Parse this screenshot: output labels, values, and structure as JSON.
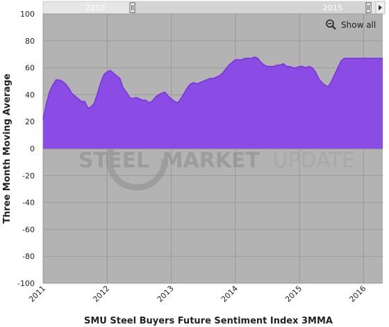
{
  "toolbar": {
    "show_all_label": "Show all",
    "icon": "zoom-out-magnifier-icon"
  },
  "navigator": {
    "labels": [
      "2010",
      "2015"
    ]
  },
  "watermark": {
    "word1": "STEEL",
    "word2": "MARKET",
    "word3": "UPDATE",
    "color": "#9a9a9a"
  },
  "colors": {
    "plot_background": "#b3b3b3",
    "series_fill": "#8b4ce6",
    "series_line": "#7a2fe0",
    "navigator_background": "#e6e6e6"
  },
  "chart_data": {
    "type": "area",
    "xlabel": "SMU Steel Buyers Future Sentiment Index 3MMA",
    "ylabel": "Three Month Moving Average",
    "ylim": [
      -100,
      100
    ],
    "yticks": [
      -100,
      -80,
      -60,
      -40,
      -20,
      0,
      20,
      40,
      60,
      80,
      100
    ],
    "xlim": [
      2011.0,
      2016.3
    ],
    "xticks": [
      2011,
      2012,
      2013,
      2014,
      2015,
      2016
    ],
    "xtick_labels": [
      "2011",
      "2012",
      "2013",
      "2014",
      "2015",
      "2016"
    ],
    "grid": true,
    "series": [
      {
        "x": [
          2011.0,
          2011.05,
          2011.1,
          2011.15,
          2011.2,
          2011.25,
          2011.3,
          2011.35,
          2011.4,
          2011.45,
          2011.5,
          2011.55,
          2011.6,
          2011.65,
          2011.7,
          2011.75,
          2011.8,
          2011.85,
          2011.9,
          2011.95,
          2012.0,
          2012.05,
          2012.1,
          2012.15,
          2012.2,
          2012.25,
          2012.3,
          2012.35,
          2012.4,
          2012.45,
          2012.5,
          2012.55,
          2012.6,
          2012.65,
          2012.7,
          2012.75,
          2012.8,
          2012.85,
          2012.9,
          2012.95,
          2013.0,
          2013.05,
          2013.1,
          2013.15,
          2013.2,
          2013.25,
          2013.3,
          2013.35,
          2013.4,
          2013.45,
          2013.5,
          2013.55,
          2013.6,
          2013.65,
          2013.7,
          2013.75,
          2013.8,
          2013.85,
          2013.9,
          2013.95,
          2014.0,
          2014.05,
          2014.1,
          2014.15,
          2014.2,
          2014.25,
          2014.3,
          2014.35,
          2014.4,
          2014.45,
          2014.5,
          2014.55,
          2014.6,
          2014.65,
          2014.7,
          2014.75,
          2014.8,
          2014.85,
          2014.9,
          2014.95,
          2015.0,
          2015.05,
          2015.1,
          2015.15,
          2015.2,
          2015.25,
          2015.3,
          2015.35,
          2015.4,
          2015.45,
          2015.5,
          2015.55,
          2015.6,
          2015.65,
          2015.7,
          2015.75,
          2015.8,
          2015.85,
          2015.9,
          2015.95,
          2016.0,
          2016.05,
          2016.1,
          2016.15,
          2016.2,
          2016.25,
          2016.3
        ],
        "values": [
          22,
          33,
          42,
          47,
          51,
          51,
          50,
          48,
          45,
          41,
          39,
          37,
          35,
          35,
          30,
          31,
          34,
          41,
          49,
          55,
          57,
          58,
          56,
          54,
          52,
          45,
          42,
          38,
          37,
          38,
          37,
          36,
          36,
          34,
          35,
          38,
          40,
          41,
          42,
          39,
          37,
          35,
          34,
          37,
          41,
          45,
          48,
          49,
          48,
          49,
          50,
          51,
          52,
          52,
          53,
          54,
          56,
          59,
          62,
          64,
          66,
          66,
          66,
          67,
          67,
          67,
          68,
          67,
          64,
          62,
          61,
          61,
          61,
          62,
          62,
          63,
          61,
          61,
          60,
          60,
          61,
          61,
          60,
          61,
          60,
          57,
          52,
          49,
          47,
          46,
          50,
          55,
          60,
          65,
          67,
          67,
          67,
          67,
          67,
          67,
          67,
          67,
          67,
          67,
          67,
          67,
          67
        ]
      }
    ]
  }
}
